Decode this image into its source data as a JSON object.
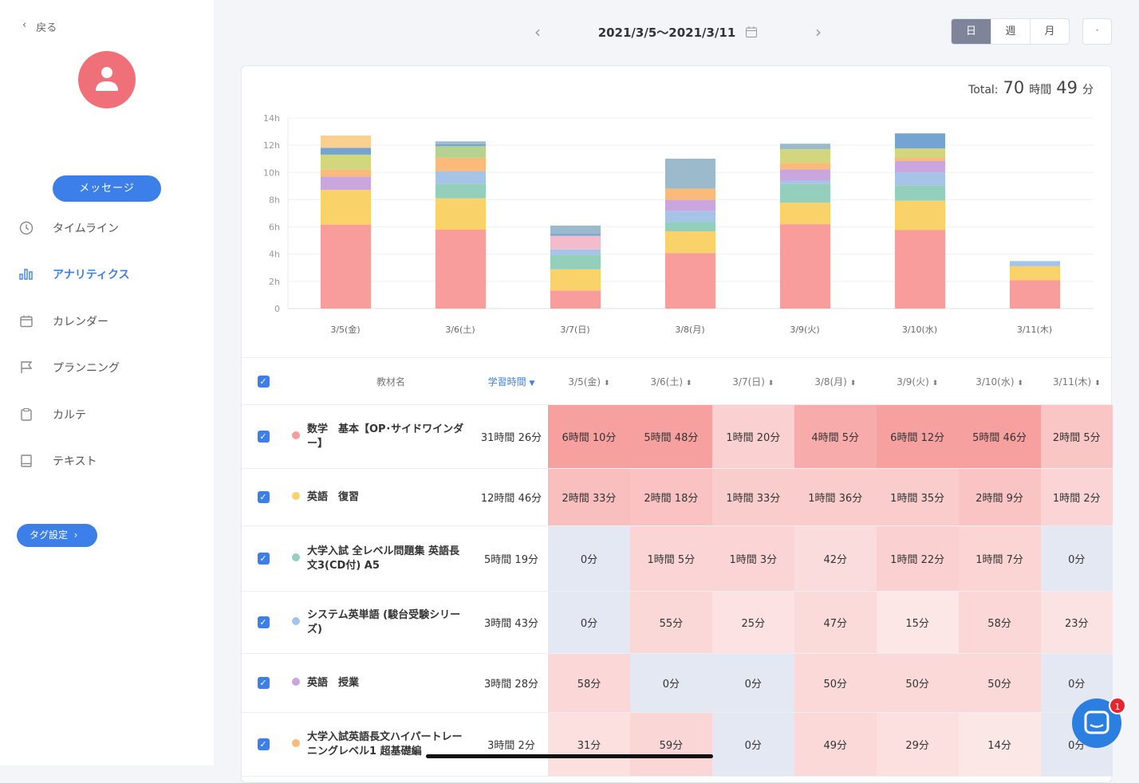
{
  "sidebar": {
    "back": "戻る",
    "message": "メッセージ",
    "tag_settings": "タグ設定",
    "items": [
      {
        "label": "タイムライン",
        "icon": "clock-icon"
      },
      {
        "label": "アナリティクス",
        "icon": "bar-chart-icon",
        "active": true
      },
      {
        "label": "カレンダー",
        "icon": "calendar-icon"
      },
      {
        "label": "プランニング",
        "icon": "flag-icon"
      },
      {
        "label": "カルテ",
        "icon": "clipboard-icon"
      },
      {
        "label": "テキスト",
        "icon": "book-icon"
      }
    ]
  },
  "header": {
    "date_range": "2021/3/5〜2021/3/11",
    "views": [
      "日",
      "週",
      "月"
    ],
    "active_view": "日",
    "extra": "•"
  },
  "total": {
    "label": "Total:",
    "hours": "70",
    "hours_unit": "時間",
    "minutes": "49",
    "minutes_unit": "分"
  },
  "colors": {
    "accent": "#3d7fe8",
    "avatar": "#f07079"
  },
  "chart_data": {
    "type": "bar",
    "stacked": true,
    "categories": [
      "3/5(金)",
      "3/6(土)",
      "3/7(日)",
      "3/8(月)",
      "3/9(火)",
      "3/10(水)",
      "3/11(木)"
    ],
    "yticks": [
      "0",
      "2h",
      "4h",
      "6h",
      "8h",
      "10h",
      "12h",
      "14h"
    ],
    "ylim": [
      0,
      14
    ],
    "grid": true,
    "series": [
      {
        "color": "#f99c9c",
        "values": [
          6.17,
          5.8,
          1.33,
          4.08,
          6.2,
          5.77,
          2.08
        ]
      },
      {
        "color": "#f9d26a",
        "values": [
          2.55,
          2.3,
          1.55,
          1.6,
          1.58,
          2.15,
          1.03
        ]
      },
      {
        "color": "#94cfbc",
        "values": [
          0,
          1.08,
          1.05,
          0.7,
          1.37,
          1.12,
          0
        ]
      },
      {
        "color": "#a6c4e8",
        "values": [
          0,
          0.92,
          0.42,
          0.78,
          0.25,
          0.97,
          0.38
        ]
      },
      {
        "color": "#c9a6de",
        "values": [
          0.97,
          0,
          0,
          0.83,
          0.83,
          0.83,
          0
        ]
      },
      {
        "color": "#fbb97a",
        "values": [
          0.52,
          0.98,
          0,
          0.82,
          0.48,
          0.23,
          0
        ]
      },
      {
        "color": "#f2bccd",
        "values": [
          0,
          0,
          1.0,
          0,
          0,
          0,
          0
        ]
      },
      {
        "color": "#d2d67d",
        "values": [
          1.1,
          0,
          0,
          0,
          1.0,
          0.7,
          0
        ]
      },
      {
        "color": "#b5d38e",
        "values": [
          0,
          0.85,
          0,
          0,
          0,
          0,
          0
        ]
      },
      {
        "color": "#76a4d2",
        "values": [
          0.5,
          0.15,
          0.15,
          0,
          0,
          1.1,
          0
        ]
      },
      {
        "color": "#9bbacb",
        "values": [
          0,
          0.2,
          0.6,
          2.2,
          0.4,
          0,
          0
        ]
      },
      {
        "color": "#f9d08f",
        "values": [
          0.9,
          0,
          0,
          0,
          0,
          0,
          0
        ]
      }
    ]
  },
  "table": {
    "headers": {
      "name": "教材名",
      "total": "学習時間",
      "sort_arrow": "▼",
      "dates": [
        "3/5(金)",
        "3/6(土)",
        "3/7(日)",
        "3/8(月)",
        "3/9(火)",
        "3/10(水)",
        "3/11(木)"
      ]
    },
    "rows": [
      {
        "name": "数学　基本【OP･サイドワインダー】",
        "color": "#f99c9c",
        "total": "31時間 26分",
        "cells": [
          "6時間 10分",
          "5時間 48分",
          "1時間 20分",
          "4時間 5分",
          "6時間 12分",
          "5時間 46分",
          "2時間 5分"
        ],
        "minutes": [
          370,
          348,
          80,
          245,
          372,
          346,
          125
        ]
      },
      {
        "name": "英語　復習",
        "color": "#f9d26a",
        "total": "12時間 46分",
        "cells": [
          "2時間 33分",
          "2時間 18分",
          "1時間 33分",
          "1時間 36分",
          "1時間 35分",
          "2時間 9分",
          "1時間 2分"
        ],
        "minutes": [
          153,
          138,
          93,
          96,
          95,
          129,
          62
        ]
      },
      {
        "name": "大学入試 全レベル問題集 英語長文3(CD付) A5",
        "color": "#94cfbc",
        "total": "5時間 19分",
        "cells": [
          "0分",
          "1時間 5分",
          "1時間 3分",
          "42分",
          "1時間 22分",
          "1時間 7分",
          "0分"
        ],
        "minutes": [
          0,
          65,
          63,
          42,
          82,
          67,
          0
        ]
      },
      {
        "name": "システム英単語 (駿台受験シリーズ)",
        "color": "#a6c4e8",
        "total": "3時間 43分",
        "cells": [
          "0分",
          "55分",
          "25分",
          "47分",
          "15分",
          "58分",
          "23分"
        ],
        "minutes": [
          0,
          55,
          25,
          47,
          15,
          58,
          23
        ]
      },
      {
        "name": "英語　授業",
        "color": "#c9a6de",
        "total": "3時間 28分",
        "cells": [
          "58分",
          "0分",
          "0分",
          "50分",
          "50分",
          "50分",
          "0分"
        ],
        "minutes": [
          58,
          0,
          0,
          50,
          50,
          50,
          0
        ]
      },
      {
        "name": "大学入試英語長文ハイパートレーニングレベル1 超基礎編",
        "color": "#fbb97a",
        "total": "3時間 2分",
        "cells": [
          "31分",
          "59分",
          "0分",
          "49分",
          "29分",
          "14分",
          "0分"
        ],
        "minutes": [
          31,
          59,
          0,
          49,
          29,
          14,
          0
        ]
      }
    ]
  },
  "chat": {
    "badge": "1"
  }
}
